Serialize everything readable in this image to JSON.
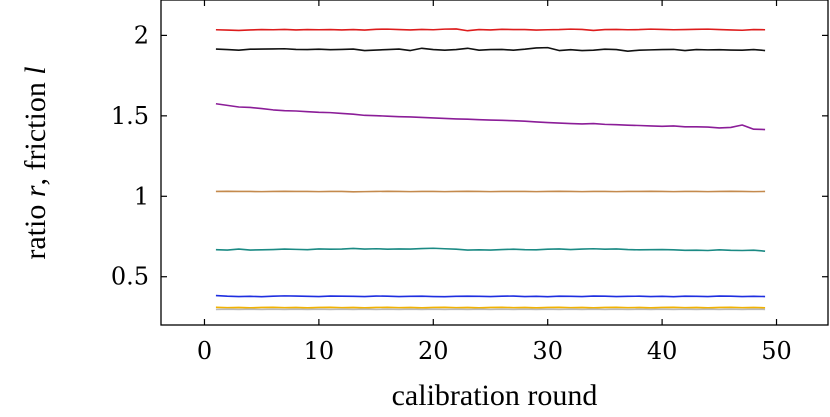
{
  "chart_data": {
    "type": "line",
    "xlabel": "calibration round",
    "ylabel": "ratio r, friction l",
    "xlim": [
      -3.8,
      54.5
    ],
    "ylim": [
      0.2,
      2.22
    ],
    "xticks": [
      0,
      10,
      20,
      30,
      40,
      50
    ],
    "yticks": [
      0.5,
      1,
      1.5,
      2
    ],
    "ytick_labels": [
      "0.5",
      "1",
      "1.5",
      "2"
    ],
    "grid": false,
    "legend": "none",
    "x": [
      1,
      2,
      3,
      4,
      5,
      6,
      7,
      8,
      9,
      10,
      11,
      12,
      13,
      14,
      15,
      16,
      17,
      18,
      19,
      20,
      21,
      22,
      23,
      24,
      25,
      26,
      27,
      28,
      29,
      30,
      31,
      32,
      33,
      34,
      35,
      36,
      37,
      38,
      39,
      40,
      41,
      42,
      43,
      44,
      45,
      46,
      47,
      48,
      49
    ],
    "series": [
      {
        "color": "#dd1c1c",
        "values": [
          2.035,
          2.033,
          2.031,
          2.034,
          2.036,
          2.035,
          2.037,
          2.034,
          2.036,
          2.035,
          2.036,
          2.034,
          2.036,
          2.033,
          2.038,
          2.039,
          2.036,
          2.034,
          2.037,
          2.035,
          2.039,
          2.04,
          2.029,
          2.036,
          2.034,
          2.038,
          2.036,
          2.036,
          2.033,
          2.035,
          2.036,
          2.039,
          2.037,
          2.031,
          2.036,
          2.037,
          2.035,
          2.036,
          2.039,
          2.037,
          2.035,
          2.036,
          2.038,
          2.039,
          2.036,
          2.034,
          2.032,
          2.036,
          2.035
        ]
      },
      {
        "color": "#111111",
        "values": [
          1.915,
          1.912,
          1.908,
          1.914,
          1.915,
          1.916,
          1.917,
          1.913,
          1.912,
          1.914,
          1.911,
          1.913,
          1.915,
          1.906,
          1.909,
          1.912,
          1.915,
          1.906,
          1.92,
          1.912,
          1.908,
          1.912,
          1.92,
          1.908,
          1.912,
          1.913,
          1.908,
          1.914,
          1.922,
          1.924,
          1.906,
          1.911,
          1.906,
          1.908,
          1.914,
          1.912,
          1.902,
          1.908,
          1.91,
          1.912,
          1.913,
          1.906,
          1.912,
          1.91,
          1.911,
          1.909,
          1.908,
          1.912,
          1.906
        ]
      },
      {
        "color": "#8b1d98",
        "values": [
          1.575,
          1.565,
          1.555,
          1.552,
          1.545,
          1.537,
          1.532,
          1.53,
          1.526,
          1.522,
          1.52,
          1.515,
          1.51,
          1.503,
          1.501,
          1.498,
          1.495,
          1.493,
          1.49,
          1.487,
          1.484,
          1.481,
          1.479,
          1.476,
          1.474,
          1.472,
          1.47,
          1.467,
          1.462,
          1.458,
          1.455,
          1.452,
          1.45,
          1.452,
          1.447,
          1.445,
          1.442,
          1.44,
          1.437,
          1.435,
          1.437,
          1.432,
          1.432,
          1.43,
          1.425,
          1.428,
          1.443,
          1.417,
          1.415
        ]
      },
      {
        "color": "#c48a4d",
        "values": [
          1.03,
          1.031,
          1.03,
          1.03,
          1.029,
          1.03,
          1.031,
          1.03,
          1.03,
          1.029,
          1.03,
          1.03,
          1.028,
          1.029,
          1.03,
          1.031,
          1.03,
          1.029,
          1.03,
          1.03,
          1.029,
          1.03,
          1.031,
          1.03,
          1.029,
          1.03,
          1.03,
          1.03,
          1.029,
          1.03,
          1.031,
          1.03,
          1.029,
          1.03,
          1.03,
          1.029,
          1.03,
          1.03,
          1.031,
          1.03,
          1.029,
          1.03,
          1.03,
          1.029,
          1.03,
          1.031,
          1.03,
          1.029,
          1.03
        ]
      },
      {
        "color": "#1b8a84",
        "values": [
          0.668,
          0.666,
          0.672,
          0.666,
          0.667,
          0.669,
          0.672,
          0.67,
          0.668,
          0.673,
          0.671,
          0.672,
          0.676,
          0.672,
          0.674,
          0.671,
          0.673,
          0.672,
          0.675,
          0.677,
          0.674,
          0.671,
          0.666,
          0.667,
          0.666,
          0.669,
          0.671,
          0.668,
          0.667,
          0.671,
          0.673,
          0.669,
          0.672,
          0.674,
          0.671,
          0.673,
          0.669,
          0.667,
          0.668,
          0.669,
          0.667,
          0.664,
          0.665,
          0.663,
          0.667,
          0.664,
          0.663,
          0.665,
          0.659
        ]
      },
      {
        "color": "#1e2ee0",
        "values": [
          0.383,
          0.379,
          0.377,
          0.378,
          0.376,
          0.379,
          0.381,
          0.38,
          0.378,
          0.377,
          0.38,
          0.379,
          0.378,
          0.377,
          0.38,
          0.379,
          0.377,
          0.378,
          0.379,
          0.377,
          0.376,
          0.378,
          0.379,
          0.378,
          0.377,
          0.379,
          0.38,
          0.377,
          0.378,
          0.376,
          0.379,
          0.378,
          0.377,
          0.38,
          0.379,
          0.377,
          0.378,
          0.379,
          0.377,
          0.378,
          0.376,
          0.379,
          0.378,
          0.377,
          0.38,
          0.379,
          0.377,
          0.378,
          0.377
        ]
      },
      {
        "color": "#f2b200",
        "values": [
          0.31,
          0.308,
          0.309,
          0.307,
          0.309,
          0.31,
          0.308,
          0.309,
          0.307,
          0.309,
          0.31,
          0.308,
          0.309,
          0.307,
          0.309,
          0.31,
          0.308,
          0.309,
          0.307,
          0.309,
          0.31,
          0.308,
          0.309,
          0.307,
          0.309,
          0.31,
          0.308,
          0.309,
          0.307,
          0.309,
          0.31,
          0.308,
          0.309,
          0.307,
          0.309,
          0.31,
          0.308,
          0.309,
          0.307,
          0.309,
          0.31,
          0.308,
          0.309,
          0.307,
          0.309,
          0.31,
          0.308,
          0.309,
          0.307
        ]
      },
      {
        "color": "#b9b9b9",
        "values": [
          0.297,
          0.298,
          0.297,
          0.298,
          0.297,
          0.298,
          0.297,
          0.298,
          0.297,
          0.298,
          0.297,
          0.298,
          0.297,
          0.298,
          0.297,
          0.298,
          0.297,
          0.298,
          0.297,
          0.298,
          0.297,
          0.298,
          0.297,
          0.298,
          0.297,
          0.298,
          0.297,
          0.298,
          0.297,
          0.298,
          0.297,
          0.298,
          0.297,
          0.298,
          0.297,
          0.298,
          0.297,
          0.298,
          0.297,
          0.298,
          0.297,
          0.298,
          0.297,
          0.298,
          0.297,
          0.298,
          0.297,
          0.298,
          0.297
        ]
      }
    ]
  }
}
